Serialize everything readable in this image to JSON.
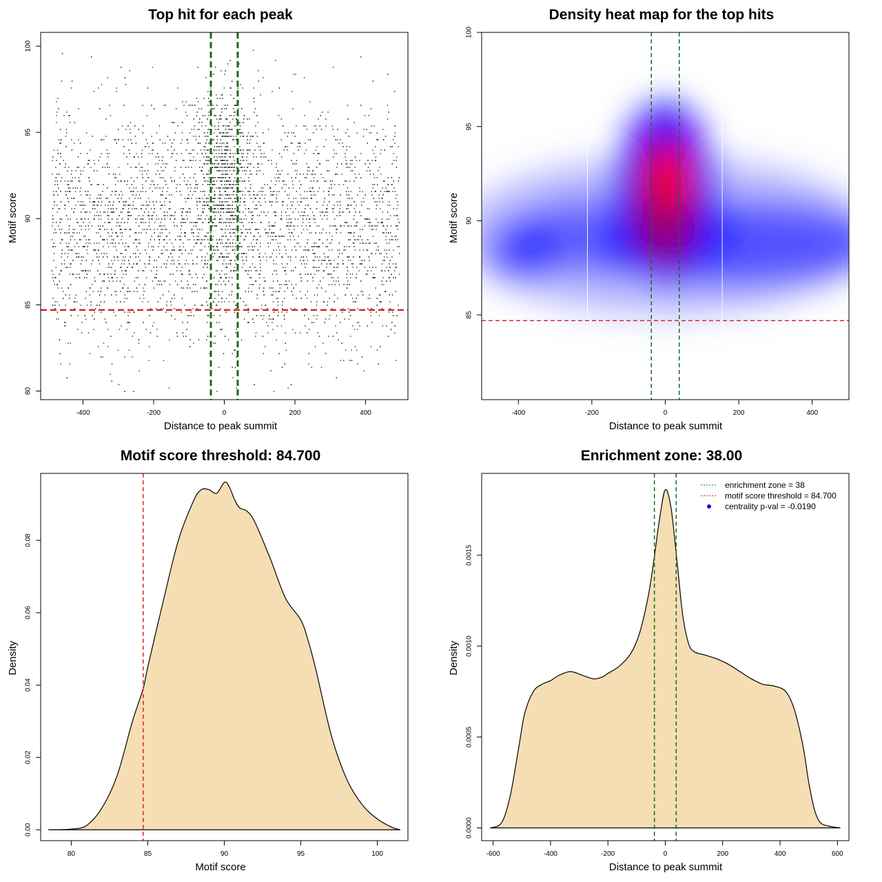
{
  "chart_data": [
    {
      "type": "scatter",
      "title": "Top hit for each peak",
      "xlabel": "Distance to peak summit",
      "ylabel": "Motif score",
      "xlim": [
        -520,
        520
      ],
      "ylim": [
        79.5,
        100.8
      ],
      "xticks": [
        -400,
        -200,
        0,
        200,
        400
      ],
      "yticks": [
        80,
        85,
        90,
        95,
        100
      ],
      "points_description_hidden": true,
      "enrichment_zone_lines": [
        -38,
        38
      ],
      "threshold_line": 84.7,
      "point_color": "#000000",
      "enrichment_color": "#1a6b1a",
      "threshold_color": "#d62728"
    },
    {
      "type": "heatmap",
      "title": "Density heat map for the top hits",
      "xlabel": "Distance to peak summit",
      "ylabel": "Motif score",
      "xlim": [
        -500,
        500
      ],
      "ylim": [
        80.5,
        100
      ],
      "xticks": [
        -400,
        -200,
        0,
        200,
        400
      ],
      "yticks": [
        85,
        90,
        95,
        100
      ],
      "enrichment_zone_lines": [
        -38,
        38
      ],
      "threshold_line": 84.7,
      "white_lines": [
        -212,
        155
      ],
      "colors": [
        "#ffffff",
        "#0000ff",
        "#ff0000"
      ]
    },
    {
      "type": "area",
      "title": "Motif score threshold: 84.700",
      "xlabel": "Motif score",
      "ylabel": "Density",
      "xlim": [
        78,
        102
      ],
      "ylim": [
        -0.003,
        0.0985
      ],
      "xticks": [
        80,
        85,
        90,
        95,
        100
      ],
      "yticks": [
        0.0,
        0.02,
        0.04,
        0.06,
        0.08
      ],
      "ytick_labels": [
        "0.00",
        "0.02",
        "0.04",
        "0.06",
        "0.08"
      ],
      "x": [
        78.5,
        80,
        81,
        82,
        83,
        84,
        84.7,
        85,
        86,
        87,
        88,
        88.5,
        89,
        89.5,
        90,
        90.3,
        90.7,
        91,
        91.5,
        92,
        93,
        94,
        95,
        95.5,
        96,
        97,
        98,
        99,
        100,
        101,
        101.5
      ],
      "y": [
        0.0,
        0.0002,
        0.0012,
        0.006,
        0.015,
        0.03,
        0.039,
        0.045,
        0.063,
        0.08,
        0.091,
        0.094,
        0.094,
        0.093,
        0.096,
        0.095,
        0.091,
        0.089,
        0.088,
        0.085,
        0.075,
        0.064,
        0.058,
        0.052,
        0.044,
        0.026,
        0.014,
        0.007,
        0.003,
        0.0006,
        0.0
      ],
      "threshold_line": 84.7,
      "fill_color": "#f5deb3",
      "threshold_color": "#d62728"
    },
    {
      "type": "area",
      "title": "Enrichment zone: 38.00",
      "xlabel": "Distance to peak summit",
      "ylabel": "Density",
      "xlim": [
        -640,
        640
      ],
      "ylim": [
        -7e-05,
        0.00195
      ],
      "xticks": [
        -600,
        -400,
        -200,
        0,
        200,
        400,
        600
      ],
      "yticks": [
        0.0,
        0.0005,
        0.001,
        0.0015
      ],
      "ytick_labels": [
        "0.0000",
        "0.0005",
        "0.0010",
        "0.0015"
      ],
      "x": [
        -610,
        -570,
        -540,
        -510,
        -490,
        -460,
        -430,
        -400,
        -370,
        -330,
        -290,
        -250,
        -220,
        -200,
        -160,
        -120,
        -90,
        -60,
        -40,
        -20,
        0,
        20,
        40,
        60,
        80,
        100,
        140,
        180,
        220,
        260,
        300,
        340,
        380,
        420,
        450,
        480,
        500,
        520,
        540,
        570,
        610
      ],
      "y": [
        0.0,
        3e-05,
        0.00018,
        0.00045,
        0.00063,
        0.00075,
        0.00079,
        0.00081,
        0.00084,
        0.00086,
        0.00084,
        0.00082,
        0.00083,
        0.00085,
        0.00089,
        0.00096,
        0.00107,
        0.00127,
        0.00147,
        0.0017,
        0.00186,
        0.00176,
        0.00148,
        0.00118,
        0.00102,
        0.00097,
        0.00095,
        0.00093,
        0.0009,
        0.00086,
        0.00082,
        0.00079,
        0.00078,
        0.00075,
        0.00065,
        0.00045,
        0.00025,
        0.0001,
        3e-05,
        1e-05,
        0.0
      ],
      "enrichment_zone_lines": [
        -38,
        38
      ],
      "fill_color": "#f5deb3",
      "enrichment_color": "#1a6b1a",
      "legend": [
        {
          "label": "enrichment zone = 38",
          "style": "dotted",
          "color": "#1a6b1a"
        },
        {
          "label": "motif score threshold = 84.700",
          "style": "dotted",
          "color": "#d62728"
        },
        {
          "label": "centrality p-val = -0.0190",
          "style": "point",
          "color": "#0000ff"
        }
      ],
      "legend_position": "top-right"
    }
  ]
}
